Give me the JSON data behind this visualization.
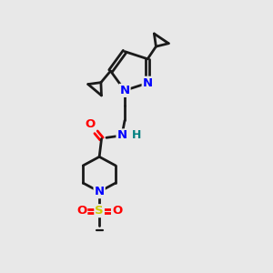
{
  "bg_color": "#e8e8e8",
  "bond_color": "#1a1a1a",
  "N_color": "#0000ff",
  "O_color": "#ff0000",
  "S_color": "#cccc00",
  "H_color": "#008080",
  "line_width": 2.0,
  "figsize": [
    3.0,
    3.0
  ],
  "dpi": 100,
  "xlim": [
    0,
    10
  ],
  "ylim": [
    0,
    10
  ]
}
